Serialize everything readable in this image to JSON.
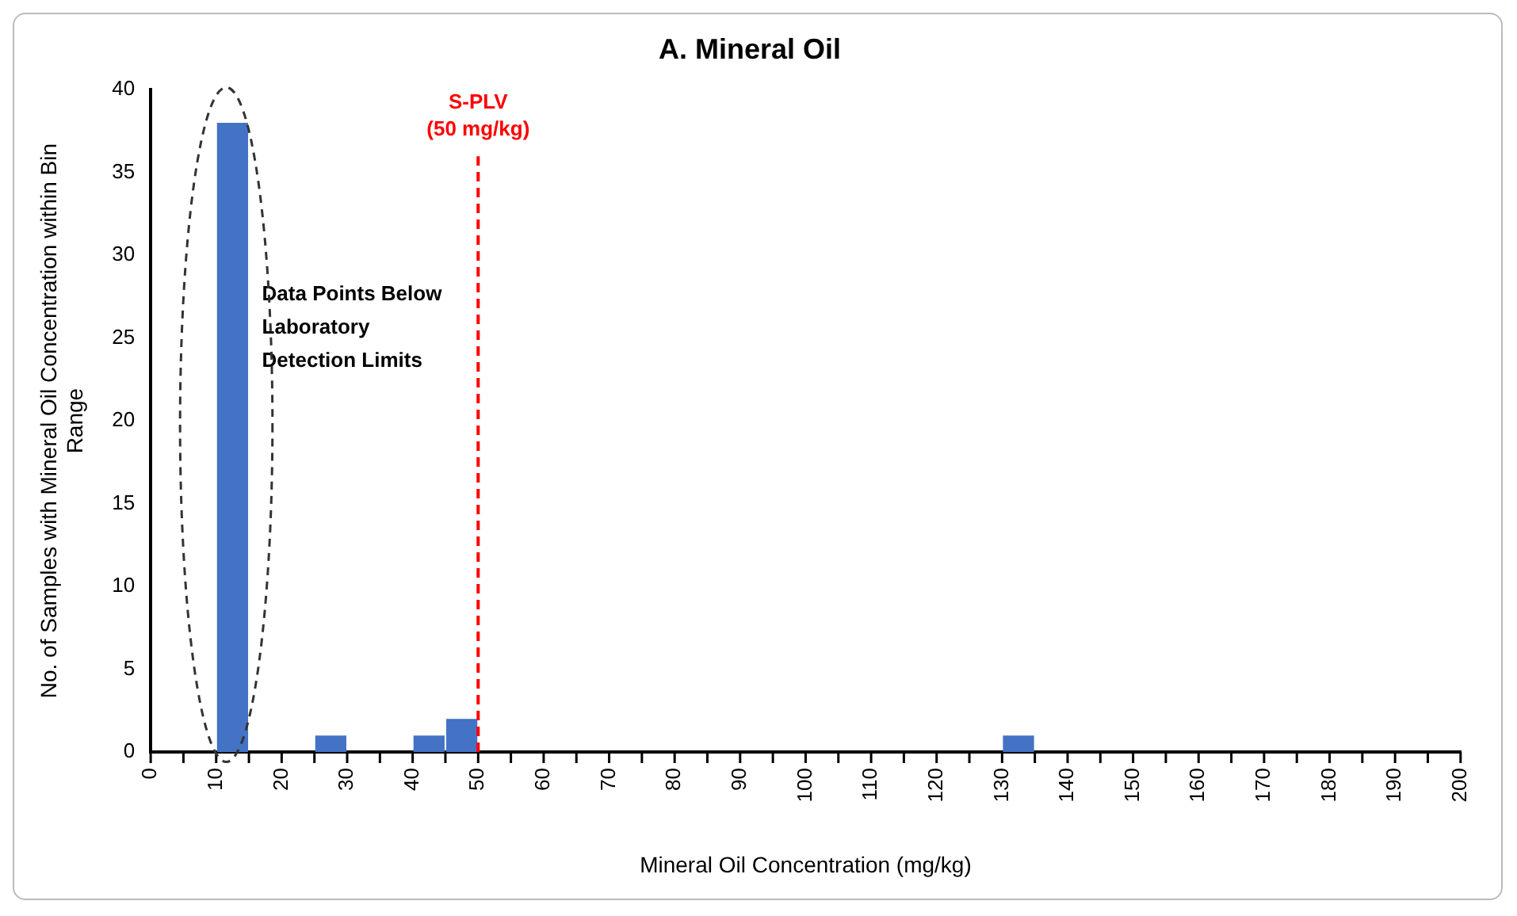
{
  "chart_data": {
    "type": "histogram",
    "title": "A. Mineral Oil",
    "xlabel": "Mineral Oil Concentration (mg/kg)",
    "ylabel": "No. of Samples with Mineral Oil Concentration within Bin Range",
    "bins": [
      0,
      5,
      10,
      15,
      20,
      25,
      30,
      35,
      40,
      45,
      50,
      55,
      60,
      65,
      70,
      75,
      80,
      85,
      90,
      95,
      100,
      105,
      110,
      115,
      120,
      125,
      130,
      135,
      140,
      145,
      150,
      155,
      160,
      165,
      170,
      175,
      180,
      185,
      190,
      195,
      200
    ],
    "values": [
      0,
      0,
      38,
      0,
      0,
      1,
      0,
      0,
      1,
      2,
      0,
      0,
      0,
      0,
      0,
      0,
      0,
      0,
      0,
      0,
      0,
      0,
      0,
      0,
      0,
      0,
      1,
      0,
      0,
      0,
      0,
      0,
      0,
      0,
      0,
      0,
      0,
      0,
      0,
      0
    ],
    "color": "#4472c4",
    "xlim": [
      0,
      200
    ],
    "xticks": [
      0,
      {
        "value": 5,
        "label": null
      },
      10,
      {
        "value": 15,
        "label": null
      },
      20,
      {
        "value": 25,
        "label": null
      },
      30,
      {
        "value": 35,
        "label": null
      },
      40,
      {
        "value": 45,
        "label": null
      },
      50,
      {
        "value": 55,
        "label": null
      },
      60,
      {
        "value": 65,
        "label": null
      },
      70,
      {
        "value": 75,
        "label": null
      },
      80,
      {
        "value": 85,
        "label": null
      },
      90,
      {
        "value": 95,
        "label": null
      },
      100,
      {
        "value": 105,
        "label": null
      },
      110,
      {
        "value": 115,
        "label": null
      },
      120,
      {
        "value": 125,
        "label": null
      },
      130,
      {
        "value": 135,
        "label": null
      },
      140,
      {
        "value": 145,
        "label": null
      },
      150,
      {
        "value": 155,
        "label": null
      },
      160,
      {
        "value": 165,
        "label": null
      },
      170,
      {
        "value": 175,
        "label": null
      },
      180,
      {
        "value": 185,
        "label": null
      },
      190,
      {
        "value": 195,
        "label": null
      },
      200
    ],
    "ylim": [
      0,
      40
    ],
    "yticks": [
      0,
      5,
      10,
      15,
      20,
      25,
      30,
      35,
      40
    ],
    "ref_lines": [
      {
        "axis": "x",
        "value": 50,
        "label": "S-PLV\n(50 mg/kg)",
        "color": "#ff0000",
        "line_style": "dashed"
      }
    ],
    "annotations": [
      "Data Points Below Laboratory Detection Limits"
    ],
    "grid": false,
    "legend": false
  }
}
